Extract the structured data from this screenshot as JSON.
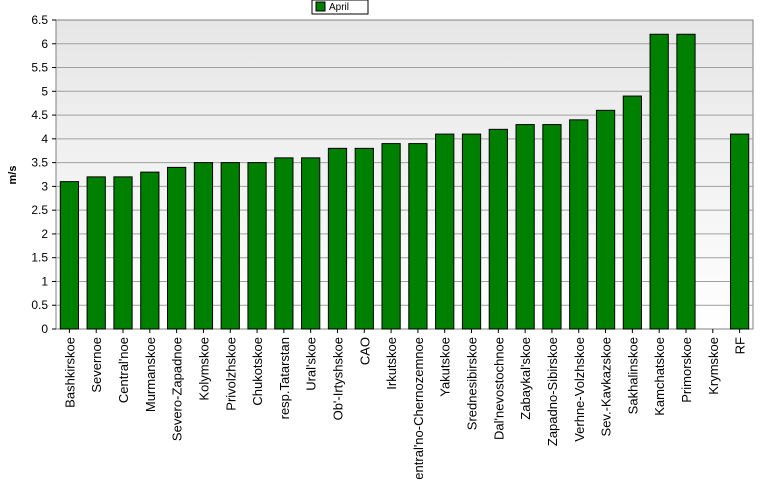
{
  "chart_data": {
    "type": "bar",
    "title": "",
    "xlabel": "",
    "ylabel": "m/s",
    "ylim": [
      0,
      6.5
    ],
    "ytick_step": 0.5,
    "yticks": [
      "0",
      "0.5",
      "1",
      "1.5",
      "2",
      "2.5",
      "3",
      "3.5",
      "4",
      "4.5",
      "5",
      "5.5",
      "6",
      "6.5"
    ],
    "grid": true,
    "legend_position": "top-center",
    "categories": [
      "Bashkirskoe",
      "Severnoe",
      "Central'noe",
      "Murmanskoe",
      "Severo-Zapadnoe",
      "Kolymskoe",
      "Privolzhskoe",
      "Chukotskoe",
      "resp.Tatarstan",
      "Ural'skoe",
      "Ob'-Irtyshskoe",
      "CAO",
      "Irkutskoe",
      "Central'no-Chernozemnoe",
      "Yakutskoe",
      "Srednesibirskoe",
      "Dal'nevostochnoe",
      "Zabaykal'skoe",
      "Zapadno-Sibirskoe",
      "Verhne-Volzhskoe",
      "Sev.-Kavkazskoe",
      "Sakhalinskoe",
      "Kamchatskoe",
      "Primorskoe",
      "Krymskoe",
      "RF"
    ],
    "series": [
      {
        "name": "April",
        "color": "#008000",
        "values": [
          3.1,
          3.2,
          3.2,
          3.3,
          3.4,
          3.5,
          3.5,
          3.5,
          3.6,
          3.6,
          3.8,
          3.8,
          3.9,
          3.9,
          4.1,
          4.1,
          4.2,
          4.3,
          4.3,
          4.4,
          4.6,
          4.9,
          6.2,
          6.2,
          null,
          4.1
        ]
      }
    ]
  }
}
